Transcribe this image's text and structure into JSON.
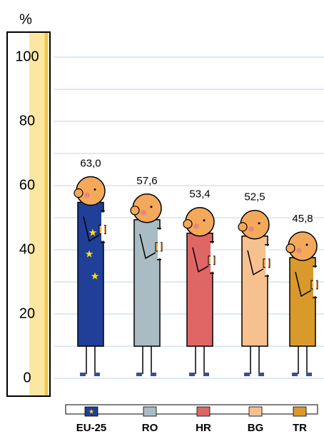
{
  "chart_data": {
    "type": "pictogram-bar",
    "y_label": "%",
    "categories": [
      "EU-25",
      "RO",
      "HR",
      "BG",
      "TR"
    ],
    "values": [
      63.0,
      57.6,
      53.4,
      52.5,
      45.8
    ],
    "value_labels": [
      "63,0",
      "57,6",
      "53,4",
      "52,5",
      "45,8"
    ],
    "colors": [
      "#1f3f99",
      "#a9bcc3",
      "#e06666",
      "#f7c08f",
      "#d99a2b"
    ],
    "ylim": [
      0,
      100
    ],
    "yticks": [
      0,
      20,
      40,
      60,
      80,
      100
    ],
    "minor_yticks": [
      10,
      30,
      50,
      70,
      90
    ],
    "grid": true
  }
}
